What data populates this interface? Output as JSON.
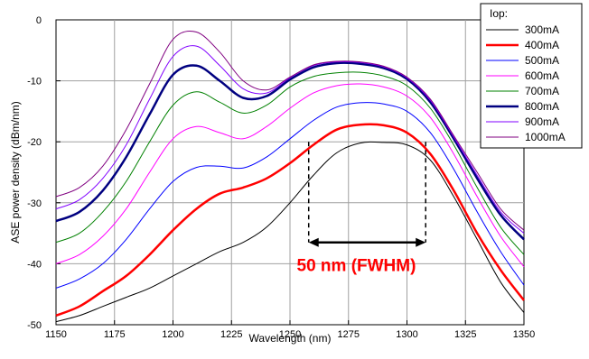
{
  "chart_data": {
    "type": "line",
    "title": "",
    "xlabel": "Wavelength (nm)",
    "ylabel": "ASE power density (dBm/nm)",
    "xlim": [
      1150,
      1350
    ],
    "ylim": [
      -50,
      0
    ],
    "xticks": [
      1150,
      1175,
      1200,
      1225,
      1250,
      1275,
      1300,
      1325,
      1350
    ],
    "yticks": [
      0,
      -10,
      -20,
      -30,
      -40,
      -50
    ],
    "grid": true,
    "legend": {
      "title": "Iop:",
      "placement": "top-right"
    },
    "series": [
      {
        "name": "300mA",
        "color": "#000000",
        "width": 1,
        "x": [
          1150,
          1160,
          1170,
          1180,
          1190,
          1200,
          1210,
          1220,
          1230,
          1240,
          1250,
          1260,
          1270,
          1280,
          1290,
          1300,
          1310,
          1320,
          1330,
          1340,
          1350
        ],
        "y": [
          -49.5,
          -48.5,
          -47,
          -45.5,
          -44,
          -42,
          -40,
          -38,
          -36.5,
          -34,
          -30,
          -25.5,
          -21.8,
          -20.2,
          -20.1,
          -20.5,
          -23,
          -29,
          -36,
          -43,
          -48
        ]
      },
      {
        "name": "400mA",
        "color": "#ff0000",
        "width": 2.5,
        "x": [
          1150,
          1160,
          1170,
          1180,
          1190,
          1200,
          1210,
          1220,
          1230,
          1240,
          1250,
          1260,
          1270,
          1280,
          1290,
          1300,
          1310,
          1320,
          1330,
          1340,
          1350
        ],
        "y": [
          -48.5,
          -47,
          -44.5,
          -42,
          -38.5,
          -34.5,
          -31,
          -28.5,
          -27.5,
          -26,
          -23.5,
          -20.5,
          -18,
          -17.2,
          -17.3,
          -18.5,
          -22,
          -28,
          -35,
          -41,
          -46
        ]
      },
      {
        "name": "500mA",
        "color": "#0000ff",
        "width": 1,
        "x": [
          1150,
          1160,
          1170,
          1180,
          1190,
          1200,
          1210,
          1220,
          1230,
          1240,
          1250,
          1260,
          1270,
          1280,
          1290,
          1300,
          1310,
          1320,
          1330,
          1340,
          1350
        ],
        "y": [
          -44,
          -42.5,
          -40,
          -36,
          -31,
          -26.5,
          -24.2,
          -24,
          -24.3,
          -22.5,
          -19.5,
          -16.5,
          -14.3,
          -13.6,
          -13.8,
          -15,
          -18.5,
          -24.5,
          -31.5,
          -38,
          -43.5
        ]
      },
      {
        "name": "600mA",
        "color": "#ff00ff",
        "width": 1,
        "x": [
          1150,
          1160,
          1170,
          1180,
          1190,
          1200,
          1210,
          1220,
          1230,
          1240,
          1250,
          1260,
          1270,
          1280,
          1290,
          1300,
          1310,
          1320,
          1330,
          1340,
          1350
        ],
        "y": [
          -40,
          -38.5,
          -35.5,
          -31,
          -25,
          -19.5,
          -17.5,
          -18.5,
          -19.5,
          -17.5,
          -14.5,
          -12,
          -10.8,
          -10.5,
          -11,
          -12.5,
          -16,
          -22,
          -29,
          -35.5,
          -40.5
        ]
      },
      {
        "name": "700mA",
        "color": "#008000",
        "width": 1,
        "x": [
          1150,
          1160,
          1170,
          1180,
          1190,
          1200,
          1210,
          1220,
          1230,
          1240,
          1250,
          1260,
          1270,
          1280,
          1290,
          1300,
          1310,
          1320,
          1330,
          1340,
          1350
        ],
        "y": [
          -36.5,
          -35,
          -31.5,
          -26.5,
          -20,
          -14,
          -11.8,
          -13.5,
          -15.3,
          -14,
          -11,
          -9.3,
          -8.7,
          -8.6,
          -9.2,
          -10.8,
          -14.5,
          -20.5,
          -27.5,
          -34,
          -38.5
        ]
      },
      {
        "name": "800mA",
        "color": "#000080",
        "width": 2.5,
        "x": [
          1150,
          1160,
          1170,
          1180,
          1190,
          1200,
          1210,
          1220,
          1230,
          1240,
          1250,
          1260,
          1270,
          1280,
          1290,
          1300,
          1310,
          1320,
          1330,
          1340,
          1350
        ],
        "y": [
          -33,
          -31.5,
          -28,
          -22.5,
          -15.5,
          -9,
          -7.5,
          -10,
          -12.8,
          -12.5,
          -9.8,
          -7.8,
          -7.1,
          -7.2,
          -7.9,
          -9.7,
          -13.5,
          -19.5,
          -26,
          -32,
          -36
        ]
      },
      {
        "name": "900mA",
        "color": "#8000ff",
        "width": 1,
        "x": [
          1150,
          1160,
          1170,
          1180,
          1190,
          1200,
          1210,
          1220,
          1230,
          1240,
          1250,
          1260,
          1270,
          1280,
          1290,
          1300,
          1310,
          1320,
          1330,
          1340,
          1350
        ],
        "y": [
          -31,
          -29.5,
          -26,
          -20.5,
          -13,
          -6,
          -4.3,
          -7.5,
          -11.3,
          -12,
          -9.5,
          -7.5,
          -6.9,
          -7,
          -7.7,
          -9.5,
          -13.2,
          -19.2,
          -25.5,
          -31.5,
          -35
        ]
      },
      {
        "name": "1000mA",
        "color": "#800080",
        "width": 1,
        "x": [
          1150,
          1160,
          1170,
          1180,
          1190,
          1200,
          1210,
          1220,
          1230,
          1240,
          1250,
          1260,
          1270,
          1280,
          1290,
          1300,
          1310,
          1320,
          1330,
          1340,
          1350
        ],
        "y": [
          -29,
          -27.5,
          -24,
          -18,
          -10.5,
          -3.2,
          -2,
          -5.3,
          -10,
          -11.5,
          -9.4,
          -7.4,
          -6.8,
          -6.9,
          -7.6,
          -9.4,
          -13,
          -19,
          -25,
          -31,
          -34.5
        ]
      }
    ],
    "annotations": [
      {
        "text": "50 nm (FWHM)",
        "color": "#ff0000",
        "arrow_x": [
          1258,
          1308
        ],
        "arrow_y": -36.5,
        "marker_x": [
          1258,
          1308
        ],
        "marker_y_top": [
          -20,
          -20
        ]
      }
    ]
  }
}
